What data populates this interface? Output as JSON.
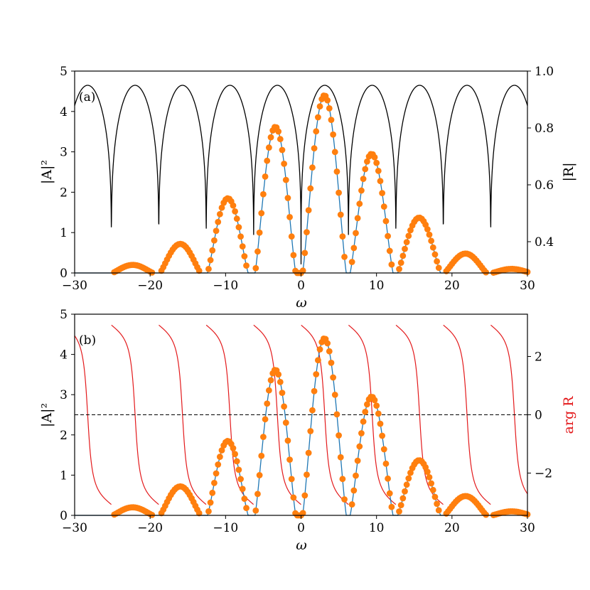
{
  "chart_data": [
    {
      "type": "line",
      "panel_label": "(a)",
      "xlabel": "ω",
      "ylabel": "|A|²",
      "ylabel_right": "|R|",
      "xlim": [
        -30,
        30
      ],
      "ylim": [
        0,
        5
      ],
      "ylim_right": [
        0.29,
        1.0
      ],
      "xticks": [
        -30,
        -20,
        -10,
        0,
        10,
        20,
        30
      ],
      "yticks": [
        0,
        1,
        2,
        3,
        4,
        5
      ],
      "yticks_right": [
        0.4,
        0.6,
        0.8,
        1.0
      ],
      "xtick_labels": [
        "−30",
        "−20",
        "−10",
        "0",
        "10",
        "20",
        "30"
      ],
      "ytick_labels": [
        "0",
        "1",
        "2",
        "3",
        "4",
        "5"
      ],
      "ytick_right_labels": [
        "0.4",
        "0.6",
        "0.8",
        "1.0"
      ],
      "period": 6.2832,
      "series": [
        {
          "kind": "line",
          "axis": "right",
          "color": "#000000",
          "description_values": {
            "max": 0.95,
            "min": 0.32,
            "minima_x": [
              -25.13,
              -18.85,
              -12.57,
              -6.28,
              0,
              6.28,
              12.57,
              18.85,
              25.13
            ]
          }
        },
        {
          "kind": "line",
          "axis": "left",
          "color": "#1f77b4",
          "arches": [
            {
              "x0": -25.0,
              "x1": -19.6,
              "peak": 0.2
            },
            {
              "x0": -18.7,
              "x1": -13.3,
              "peak": 0.72
            },
            {
              "x0": -12.4,
              "x1": -7.0,
              "peak": 1.85
            },
            {
              "x0": -6.1,
              "x1": -0.7,
              "peak": 3.62
            },
            {
              "x0": 0.2,
              "x1": 6.0,
              "peak": 4.4
            },
            {
              "x0": 6.5,
              "x1": 12.2,
              "peak": 2.95
            },
            {
              "x0": 12.8,
              "x1": 18.5,
              "peak": 1.37
            },
            {
              "x0": 19.0,
              "x1": 24.6,
              "peak": 0.48
            },
            {
              "x0": 25.3,
              "x1": 30.5,
              "peak": 0.1
            }
          ]
        },
        {
          "kind": "scatter",
          "axis": "left",
          "color": "#ff7f0e"
        }
      ]
    },
    {
      "type": "line",
      "panel_label": "(b)",
      "xlabel": "ω",
      "ylabel": "|A|²",
      "ylabel_right": "arg R",
      "xlim": [
        -30,
        30
      ],
      "ylim": [
        0,
        5
      ],
      "ylim_right": [
        -3.45,
        3.45
      ],
      "xticks": [
        -30,
        -20,
        -10,
        0,
        10,
        20,
        30
      ],
      "yticks": [
        0,
        1,
        2,
        3,
        4,
        5
      ],
      "yticks_right": [
        -2,
        0,
        2
      ],
      "xtick_labels": [
        "−30",
        "−20",
        "−10",
        "0",
        "10",
        "20",
        "30"
      ],
      "ytick_labels": [
        "0",
        "1",
        "2",
        "3",
        "4",
        "5"
      ],
      "ytick_right_labels": [
        "−2",
        "0",
        "2"
      ],
      "series": [
        {
          "kind": "line",
          "axis": "right",
          "color": "#e31a1c",
          "description_values": {
            "range": [
              -3.14,
              3.14
            ],
            "jumps_x": [
              -25.13,
              -18.85,
              -12.57,
              -6.28,
              0,
              6.28,
              12.57,
              18.85,
              25.13
            ]
          }
        },
        {
          "kind": "hline",
          "axis": "right",
          "color": "#000000",
          "y": 0
        },
        {
          "kind": "line",
          "axis": "left",
          "color": "#1f77b4"
        },
        {
          "kind": "scatter",
          "axis": "left",
          "color": "#ff7f0e"
        }
      ]
    }
  ],
  "colors": {
    "reflection_magnitude": "#000000",
    "reflection_phase": "#e31a1c",
    "theory_curve": "#1f77b4",
    "simulation_points": "#ff7f0e"
  }
}
